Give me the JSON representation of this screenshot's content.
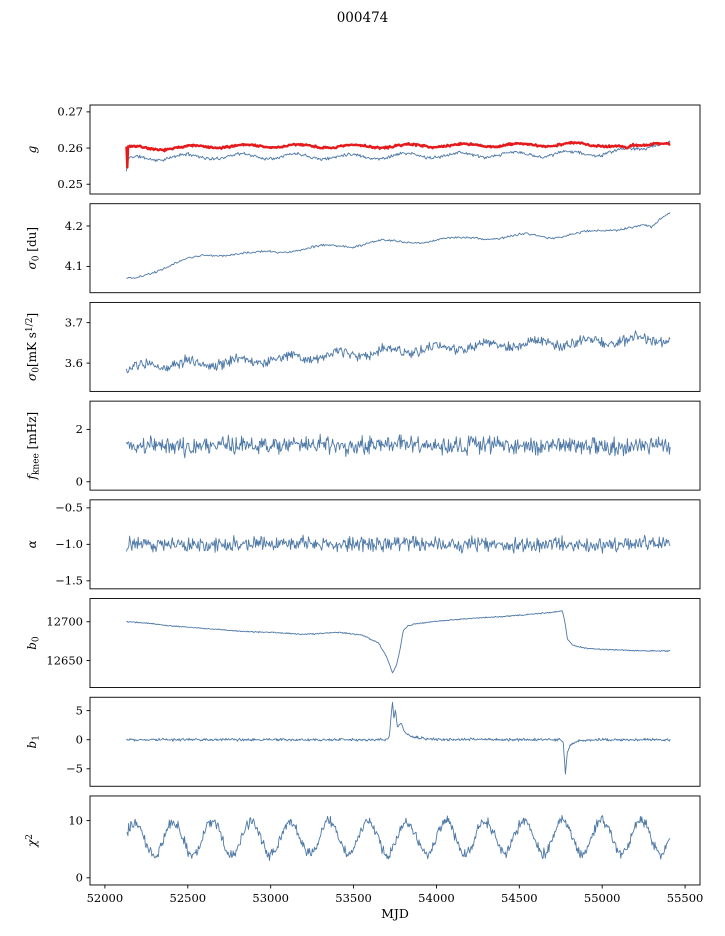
{
  "title": "000474",
  "xlabel": "MJD",
  "figure": {
    "background": "#ffffff",
    "spine_color": "#000000",
    "blue": "#4e79a7",
    "red": "#e41a1c"
  },
  "x_axis": {
    "lim": [
      51910,
      55590
    ],
    "ticks": [
      52000,
      52500,
      53000,
      53500,
      54000,
      54500,
      55000,
      55500
    ],
    "tick_labels": [
      "52000",
      "52500",
      "53000",
      "53500",
      "54000",
      "54500",
      "55000",
      "55500"
    ]
  },
  "chart_data": {
    "type": "line",
    "title": "000474",
    "xlabel": "MJD",
    "x_range": [
      52130,
      55410
    ],
    "legend": "none",
    "panels": [
      {
        "id": "g",
        "ylabel_segments": [
          [
            "i",
            "g"
          ]
        ],
        "yticks": [
          0.25,
          0.26,
          0.27
        ],
        "ytick_labels": [
          "0.25",
          "0.26",
          "0.27"
        ],
        "ylim": [
          0.2473,
          0.2719
        ],
        "series": [
          {
            "name": "g-fit",
            "color": "#4e79a7",
            "width": 0.9,
            "seed": 11,
            "n": 660,
            "noise_amp": 0.00055,
            "oscillation": {
              "amp": 0.0007,
              "period": 330,
              "phase": 1.0
            },
            "trend_points": [
              [
                52130,
                0.253
              ],
              [
                52136,
                0.2566
              ],
              [
                52200,
                0.2572
              ],
              [
                52500,
                0.2576
              ],
              [
                53000,
                0.2578
              ],
              [
                53500,
                0.2576
              ],
              [
                54000,
                0.258
              ],
              [
                54500,
                0.2582
              ],
              [
                55000,
                0.2586
              ],
              [
                55200,
                0.2595
              ],
              [
                55320,
                0.2614
              ],
              [
                55410,
                0.2612
              ]
            ]
          },
          {
            "name": "g-smooth",
            "color": "#e41a1c",
            "width": 2.4,
            "seed": 7,
            "n": 660,
            "noise_amp": 0.00035,
            "oscillation": {
              "amp": 0.00045,
              "period": 330,
              "phase": 0.5
            },
            "trend_points": [
              [
                52130,
                0.2605
              ],
              [
                52133,
                0.2502
              ],
              [
                52138,
                0.2602
              ],
              [
                52300,
                0.2598
              ],
              [
                52600,
                0.2604
              ],
              [
                53000,
                0.2606
              ],
              [
                53500,
                0.2604
              ],
              [
                54000,
                0.2607
              ],
              [
                54500,
                0.2608
              ],
              [
                54800,
                0.261
              ],
              [
                55000,
                0.261
              ],
              [
                55100,
                0.2604
              ],
              [
                55150,
                0.2596
              ],
              [
                55180,
                0.2604
              ],
              [
                55250,
                0.2608
              ],
              [
                55330,
                0.2618
              ],
              [
                55410,
                0.2612
              ]
            ]
          }
        ]
      },
      {
        "id": "sigma0-du",
        "ylabel_segments": [
          [
            "i",
            "σ"
          ],
          [
            "sub",
            "0"
          ],
          [
            "n",
            " [du]"
          ]
        ],
        "yticks": [
          4.1,
          4.2
        ],
        "ytick_labels": [
          "4.1",
          "4.2"
        ],
        "ylim": [
          4.035,
          4.255
        ],
        "series": [
          {
            "name": "sigma0-du",
            "color": "#4e79a7",
            "width": 0.9,
            "seed": 21,
            "n": 520,
            "noise_amp": 0.0035,
            "oscillation": {
              "amp": 0.004,
              "period": 400,
              "phase": 2.0
            },
            "trend_points": [
              [
                52130,
                4.068
              ],
              [
                52180,
                4.07
              ],
              [
                52300,
                4.09
              ],
              [
                52450,
                4.11
              ],
              [
                52600,
                4.128
              ],
              [
                52750,
                4.13
              ],
              [
                52900,
                4.132
              ],
              [
                53050,
                4.138
              ],
              [
                53200,
                4.143
              ],
              [
                53350,
                4.15
              ],
              [
                53500,
                4.152
              ],
              [
                53650,
                4.162
              ],
              [
                53800,
                4.16
              ],
              [
                53950,
                4.163
              ],
              [
                54100,
                4.168
              ],
              [
                54250,
                4.172
              ],
              [
                54400,
                4.17
              ],
              [
                54550,
                4.178
              ],
              [
                54700,
                4.173
              ],
              [
                54850,
                4.18
              ],
              [
                55000,
                4.188
              ],
              [
                55150,
                4.197
              ],
              [
                55250,
                4.2
              ],
              [
                55300,
                4.193
              ],
              [
                55350,
                4.215
              ],
              [
                55410,
                4.232
              ]
            ]
          }
        ]
      },
      {
        "id": "sigma0-mks",
        "ylabel_segments": [
          [
            "i",
            "σ"
          ],
          [
            "sub",
            "0"
          ],
          [
            "n",
            "[mK s"
          ],
          [
            "sup",
            "1/2"
          ],
          [
            "n",
            "]"
          ]
        ],
        "yticks": [
          3.6,
          3.7
        ],
        "ytick_labels": [
          "3.6",
          "3.7"
        ],
        "ylim": [
          3.53,
          3.75
        ],
        "series": [
          {
            "name": "sigma0-mks",
            "color": "#4e79a7",
            "width": 0.9,
            "seed": 31,
            "n": 660,
            "noise_amp": 0.016,
            "oscillation": {
              "amp": 0.008,
              "period": 300,
              "phase": 0.0
            },
            "trend_points": [
              [
                52130,
                3.578
              ],
              [
                52250,
                3.592
              ],
              [
                52400,
                3.598
              ],
              [
                52700,
                3.602
              ],
              [
                53000,
                3.61
              ],
              [
                53300,
                3.618
              ],
              [
                53600,
                3.625
              ],
              [
                53900,
                3.632
              ],
              [
                54200,
                3.64
              ],
              [
                54500,
                3.648
              ],
              [
                54800,
                3.65
              ],
              [
                55100,
                3.655
              ],
              [
                55410,
                3.66
              ]
            ]
          }
        ]
      },
      {
        "id": "fknee",
        "ylabel_segments": [
          [
            "i",
            "f"
          ],
          [
            "sub",
            "knee"
          ],
          [
            "n",
            " [mHz]"
          ]
        ],
        "yticks": [
          0,
          2
        ],
        "ytick_labels": [
          "0",
          "2"
        ],
        "ylim": [
          -0.32,
          3.08
        ],
        "series": [
          {
            "name": "fknee",
            "color": "#4e79a7",
            "width": 0.9,
            "seed": 41,
            "n": 700,
            "noise_amp": 0.42,
            "oscillation": {
              "amp": 0.05,
              "period": 500,
              "phase": 0.0
            },
            "trend_points": [
              [
                52130,
                1.36
              ],
              [
                53500,
                1.4
              ],
              [
                54500,
                1.38
              ],
              [
                55410,
                1.36
              ]
            ]
          }
        ]
      },
      {
        "id": "alpha",
        "ylabel_segments": [
          [
            "i",
            "α"
          ]
        ],
        "yticks": [
          -1.5,
          -1.0,
          -0.5
        ],
        "ytick_labels": [
          "−1.5",
          "−1.0",
          "−0.5"
        ],
        "ylim": [
          -1.61,
          -0.39
        ],
        "series": [
          {
            "name": "alpha",
            "color": "#4e79a7",
            "width": 0.9,
            "seed": 51,
            "n": 700,
            "noise_amp": 0.125,
            "oscillation": {
              "amp": 0.01,
              "period": 500,
              "phase": 0.0
            },
            "trend_points": [
              [
                52130,
                -1.0
              ],
              [
                53500,
                -0.99
              ],
              [
                54500,
                -1.01
              ],
              [
                55410,
                -1.0
              ]
            ]
          }
        ]
      },
      {
        "id": "b0",
        "ylabel_segments": [
          [
            "i",
            "b"
          ],
          [
            "sub",
            "0"
          ]
        ],
        "yticks": [
          12650,
          12700
        ],
        "ytick_labels": [
          "12650",
          "12700"
        ],
        "ylim": [
          12615,
          12730
        ],
        "series": [
          {
            "name": "b0",
            "color": "#4e79a7",
            "width": 0.9,
            "seed": 61,
            "n": 700,
            "noise_amp": 0.9,
            "oscillation": {
              "amp": 0.3,
              "period": 400,
              "phase": 0.0
            },
            "trend_points": [
              [
                52130,
                12700
              ],
              [
                52300,
                12697
              ],
              [
                52600,
                12691
              ],
              [
                52900,
                12687
              ],
              [
                53200,
                12684
              ],
              [
                53400,
                12686
              ],
              [
                53550,
                12683
              ],
              [
                53650,
                12673
              ],
              [
                53700,
                12655
              ],
              [
                53735,
                12634
              ],
              [
                53755,
                12642
              ],
              [
                53775,
                12658
              ],
              [
                53800,
                12688
              ],
              [
                53830,
                12695
              ],
              [
                53900,
                12698
              ],
              [
                54000,
                12701
              ],
              [
                54200,
                12704
              ],
              [
                54400,
                12707
              ],
              [
                54600,
                12710
              ],
              [
                54700,
                12712
              ],
              [
                54760,
                12714
              ],
              [
                54775,
                12700
              ],
              [
                54790,
                12678
              ],
              [
                54820,
                12670
              ],
              [
                54900,
                12666
              ],
              [
                55000,
                12664
              ],
              [
                55200,
                12663
              ],
              [
                55410,
                12662
              ]
            ]
          }
        ]
      },
      {
        "id": "b1",
        "ylabel_segments": [
          [
            "i",
            "b"
          ],
          [
            "sub",
            "1"
          ]
        ],
        "yticks": [
          -5,
          0,
          5
        ],
        "ytick_labels": [
          "−5",
          "0",
          "5"
        ],
        "ylim": [
          -8.0,
          7.3
        ],
        "series": [
          {
            "name": "b1",
            "color": "#4e79a7",
            "width": 0.9,
            "seed": 71,
            "n": 800,
            "noise_amp": 0.28,
            "oscillation": {
              "amp": 0.0,
              "period": 400,
              "phase": 0.0
            },
            "trend_points": [
              [
                52130,
                0
              ],
              [
                53690,
                0
              ],
              [
                53715,
                0.5
              ],
              [
                53735,
                6.6
              ],
              [
                53745,
                3.2
              ],
              [
                53752,
                5.2
              ],
              [
                53765,
                2.0
              ],
              [
                53785,
                3.0
              ],
              [
                53810,
                1.2
              ],
              [
                53860,
                0.5
              ],
              [
                53950,
                0.1
              ],
              [
                54740,
                0
              ],
              [
                54765,
                -0.4
              ],
              [
                54778,
                -5.9
              ],
              [
                54790,
                -2.2
              ],
              [
                54810,
                -0.8
              ],
              [
                54860,
                -0.2
              ],
              [
                54950,
                0
              ],
              [
                55410,
                0
              ]
            ]
          }
        ]
      },
      {
        "id": "chi2",
        "ylabel_segments": [
          [
            "i",
            "χ"
          ],
          [
            "sup",
            "2"
          ]
        ],
        "yticks": [
          0,
          10
        ],
        "ytick_labels": [
          "0",
          "10"
        ],
        "ylim": [
          -1.25,
          14.3
        ],
        "series": [
          {
            "name": "chi2",
            "color": "#4e79a7",
            "width": 0.9,
            "seed": 81,
            "n": 750,
            "noise_amp": 1.15,
            "oscillation": {
              "amp": 2.9,
              "period": 235,
              "phase": 0.3
            },
            "trend_points": [
              [
                52130,
                6.8
              ],
              [
                53500,
                7.0
              ],
              [
                54500,
                7.1
              ],
              [
                55410,
                7.2
              ]
            ]
          }
        ]
      }
    ]
  }
}
